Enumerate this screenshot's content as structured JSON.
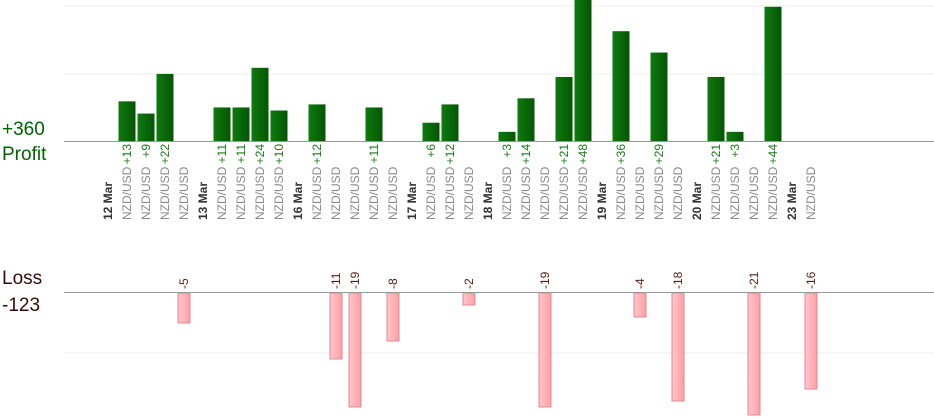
{
  "summary": {
    "profit_total": "+360",
    "profit_caption": "Profit",
    "loss_caption": "Loss",
    "loss_total": "-123"
  },
  "colors": {
    "profit": "#0b6e0b",
    "profit_label": "#1a7a1a",
    "loss": "#ffb3b8",
    "loss_border": "#e08890",
    "loss_label": "#5a1a1a",
    "pair_text": "#8a8a8a",
    "date_text": "#333333",
    "axis": "#999999",
    "grid": "#ececec"
  },
  "chart_data": {
    "type": "bar",
    "title": "",
    "xlabel": "",
    "ylabel": "",
    "grid": true,
    "profit_ylim": [
      0,
      44
    ],
    "loss_ylim": [
      -19,
      0
    ],
    "columns": [
      {
        "type": "date",
        "label": "12 Mar"
      },
      {
        "type": "trade",
        "pair": "NZD/USD",
        "value": 13
      },
      {
        "type": "trade",
        "pair": "NZD/USD",
        "value": 9
      },
      {
        "type": "trade",
        "pair": "NZD/USD",
        "value": 22
      },
      {
        "type": "trade",
        "pair": "NZD/USD",
        "value": -5
      },
      {
        "type": "date",
        "label": "13 Mar"
      },
      {
        "type": "trade",
        "pair": "NZD/USD",
        "value": 11
      },
      {
        "type": "trade",
        "pair": "NZD/USD",
        "value": 11
      },
      {
        "type": "trade",
        "pair": "NZD/USD",
        "value": 24
      },
      {
        "type": "trade",
        "pair": "NZD/USD",
        "value": 10
      },
      {
        "type": "date",
        "label": "16 Mar"
      },
      {
        "type": "trade",
        "pair": "NZD/USD",
        "value": 12
      },
      {
        "type": "trade",
        "pair": "NZD/USD",
        "value": -11
      },
      {
        "type": "trade",
        "pair": "NZD/USD",
        "value": -19
      },
      {
        "type": "trade",
        "pair": "NZD/USD",
        "value": 11
      },
      {
        "type": "trade",
        "pair": "NZD/USD",
        "value": -8
      },
      {
        "type": "date",
        "label": "17 Mar"
      },
      {
        "type": "trade",
        "pair": "NZD/USD",
        "value": 6
      },
      {
        "type": "trade",
        "pair": "NZD/USD",
        "value": 12
      },
      {
        "type": "trade",
        "pair": "NZD/USD",
        "value": -2
      },
      {
        "type": "date",
        "label": "18 Mar"
      },
      {
        "type": "trade",
        "pair": "NZD/USD",
        "value": 3
      },
      {
        "type": "trade",
        "pair": "NZD/USD",
        "value": 14
      },
      {
        "type": "trade",
        "pair": "NZD/USD",
        "value": -19
      },
      {
        "type": "trade",
        "pair": "NZD/USD",
        "value": 21
      },
      {
        "type": "trade",
        "pair": "NZD/USD",
        "value": 48
      },
      {
        "type": "date",
        "label": "19 Mar"
      },
      {
        "type": "trade",
        "pair": "NZD/USD",
        "value": 36
      },
      {
        "type": "trade",
        "pair": "NZD/USD",
        "value": -4
      },
      {
        "type": "trade",
        "pair": "NZD/USD",
        "value": 29
      },
      {
        "type": "trade",
        "pair": "NZD/USD",
        "value": -18
      },
      {
        "type": "date",
        "label": "20 Mar"
      },
      {
        "type": "trade",
        "pair": "NZD/USD",
        "value": 21
      },
      {
        "type": "trade",
        "pair": "NZD/USD",
        "value": 3
      },
      {
        "type": "trade",
        "pair": "NZD/USD",
        "value": -21
      },
      {
        "type": "trade",
        "pair": "NZD/USD",
        "value": 44
      },
      {
        "type": "date",
        "label": "23 Mar"
      },
      {
        "type": "trade",
        "pair": "NZD/USD",
        "value": -16
      }
    ]
  }
}
